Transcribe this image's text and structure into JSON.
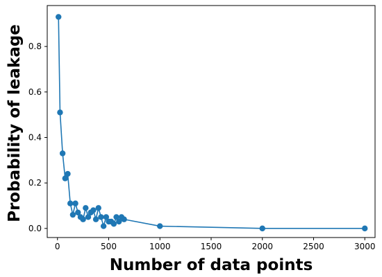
{
  "chart_data": {
    "type": "line",
    "title": "",
    "xlabel": "Number of data points",
    "ylabel": "Probability of leakage",
    "xlim": [
      -100,
      3100
    ],
    "ylim": [
      -0.04,
      0.98
    ],
    "xticks": [
      0,
      500,
      1000,
      1500,
      2000,
      2500,
      3000
    ],
    "yticks": [
      0.0,
      0.2,
      0.4,
      0.6,
      0.8
    ],
    "ytick_labels": [
      "0.0",
      "0.2",
      "0.4",
      "0.6",
      "0.8"
    ],
    "grid": false,
    "series": [
      {
        "color": "#1f77b4",
        "marker": "circle",
        "x": [
          10,
          25,
          50,
          75,
          100,
          125,
          150,
          175,
          200,
          225,
          250,
          275,
          300,
          325,
          350,
          375,
          400,
          425,
          450,
          475,
          500,
          525,
          550,
          575,
          600,
          625,
          650,
          1000,
          2000,
          3000
        ],
        "y": [
          0.93,
          0.51,
          0.33,
          0.22,
          0.24,
          0.11,
          0.06,
          0.11,
          0.07,
          0.05,
          0.04,
          0.09,
          0.05,
          0.07,
          0.08,
          0.04,
          0.09,
          0.05,
          0.01,
          0.05,
          0.03,
          0.03,
          0.02,
          0.05,
          0.03,
          0.05,
          0.04,
          0.01,
          0.0,
          0.0
        ]
      }
    ]
  }
}
